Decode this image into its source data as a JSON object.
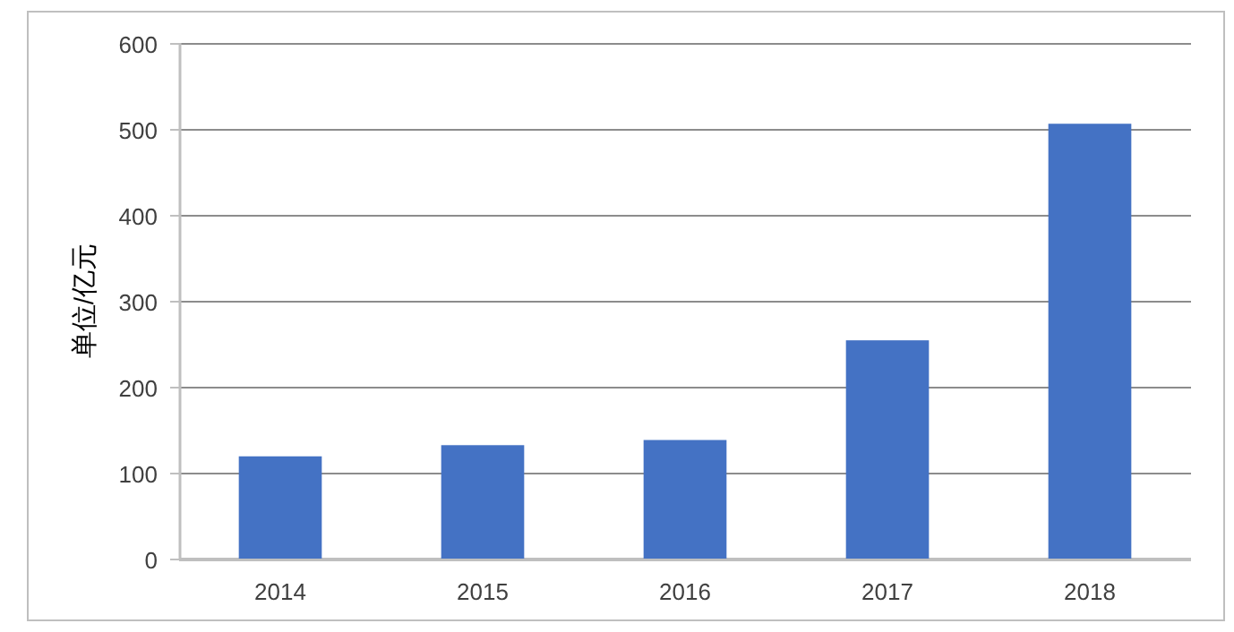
{
  "chart_data": {
    "type": "bar",
    "ylabel": "单位/亿元",
    "categories": [
      "2014",
      "2015",
      "2016",
      "2017",
      "2018"
    ],
    "values": [
      119,
      132,
      138,
      254,
      506
    ],
    "color": "#4472c4",
    "ylim": [
      0,
      600
    ],
    "yticks": [
      0,
      100,
      200,
      300,
      400,
      500,
      600
    ],
    "grid": "y"
  }
}
